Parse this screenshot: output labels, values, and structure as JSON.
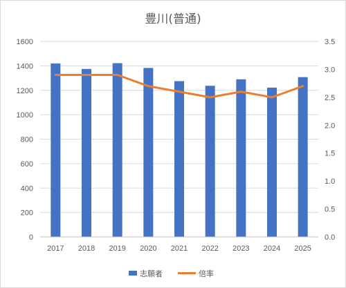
{
  "chart_data": {
    "type": "bar",
    "title": "豊川(普通)",
    "categories": [
      "2017",
      "2018",
      "2019",
      "2020",
      "2021",
      "2022",
      "2023",
      "2024",
      "2025"
    ],
    "series": [
      {
        "name": "志願者",
        "type": "bar",
        "axis": "left",
        "color": "#4472c4",
        "values": [
          1420,
          1375,
          1422,
          1383,
          1275,
          1237,
          1290,
          1222,
          1308
        ]
      },
      {
        "name": "倍率",
        "type": "line",
        "axis": "right",
        "color": "#ed7d31",
        "values": [
          2.9,
          2.9,
          2.9,
          2.7,
          2.6,
          2.5,
          2.6,
          2.5,
          2.7
        ]
      }
    ],
    "y_left": {
      "range": [
        0,
        1600
      ],
      "ticks": [
        "0",
        "200",
        "400",
        "600",
        "800",
        "1000",
        "1200",
        "1400",
        "1600"
      ]
    },
    "y_right": {
      "range": [
        0,
        3.5
      ],
      "ticks": [
        "0.0",
        "0.5",
        "1.0",
        "1.5",
        "2.0",
        "2.5",
        "3.0",
        "3.5"
      ]
    },
    "grid": true,
    "legend_position": "bottom"
  }
}
